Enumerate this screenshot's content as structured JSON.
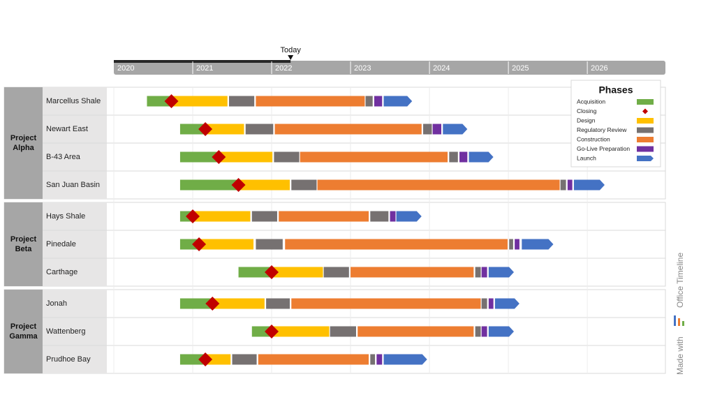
{
  "chart_data": {
    "type": "gantt",
    "xlim": [
      2020,
      2026.99
    ],
    "xticks": [
      2020,
      2021,
      2022,
      2023,
      2024,
      2025,
      2026
    ],
    "today": {
      "label": "Today",
      "value": 2022.24
    },
    "legend": {
      "title": "Phases",
      "items": [
        {
          "name": "Acquisition",
          "color": "#70ad47"
        },
        {
          "name": "Closing",
          "color": "#c00000"
        },
        {
          "name": "Design",
          "color": "#ffc000"
        },
        {
          "name": "Regulatory Review",
          "color": "#767171"
        },
        {
          "name": "Construction",
          "color": "#ed7d31"
        },
        {
          "name": "Go-Live Preparation",
          "color": "#7030a0"
        },
        {
          "name": "Launch",
          "color": "#4472c4"
        }
      ]
    },
    "groups": [
      {
        "name": "Project Alpha",
        "rows": [
          {
            "name": "Marcellus Shale",
            "closing": 2020.73,
            "bars": [
              {
                "phase": "Acquisition",
                "start": 2020.42,
                "end": 2020.73
              },
              {
                "phase": "Design",
                "start": 2020.73,
                "end": 2021.44
              },
              {
                "phase": "Regulatory Review",
                "start": 2021.46,
                "end": 2021.78
              },
              {
                "phase": "Construction",
                "start": 2021.8,
                "end": 2023.18
              },
              {
                "phase": "Regulatory Review",
                "start": 2023.19,
                "end": 2023.28
              },
              {
                "phase": "Go-Live Preparation",
                "start": 2023.3,
                "end": 2023.4
              },
              {
                "phase": "Launch",
                "start": 2023.42,
                "end": 2023.78
              }
            ]
          },
          {
            "name": "Newart East",
            "closing": 2021.16,
            "bars": [
              {
                "phase": "Acquisition",
                "start": 2020.84,
                "end": 2021.16
              },
              {
                "phase": "Design",
                "start": 2021.16,
                "end": 2021.65
              },
              {
                "phase": "Regulatory Review",
                "start": 2021.67,
                "end": 2022.02
              },
              {
                "phase": "Construction",
                "start": 2022.04,
                "end": 2023.9
              },
              {
                "phase": "Regulatory Review",
                "start": 2023.92,
                "end": 2024.03
              },
              {
                "phase": "Go-Live Preparation",
                "start": 2024.04,
                "end": 2024.15
              },
              {
                "phase": "Launch",
                "start": 2024.17,
                "end": 2024.48
              }
            ]
          },
          {
            "name": "B-43 Area",
            "closing": 2021.33,
            "bars": [
              {
                "phase": "Acquisition",
                "start": 2020.84,
                "end": 2021.33
              },
              {
                "phase": "Design",
                "start": 2021.33,
                "end": 2022.01
              },
              {
                "phase": "Regulatory Review",
                "start": 2022.03,
                "end": 2022.35
              },
              {
                "phase": "Construction",
                "start": 2022.36,
                "end": 2024.23
              },
              {
                "phase": "Regulatory Review",
                "start": 2024.25,
                "end": 2024.36
              },
              {
                "phase": "Go-Live Preparation",
                "start": 2024.38,
                "end": 2024.48
              },
              {
                "phase": "Launch",
                "start": 2024.5,
                "end": 2024.81
              }
            ]
          },
          {
            "name": "San Juan Basin",
            "closing": 2021.58,
            "bars": [
              {
                "phase": "Acquisition",
                "start": 2020.84,
                "end": 2021.58
              },
              {
                "phase": "Design",
                "start": 2021.58,
                "end": 2022.23
              },
              {
                "phase": "Regulatory Review",
                "start": 2022.25,
                "end": 2022.57
              },
              {
                "phase": "Construction",
                "start": 2022.58,
                "end": 2025.65
              },
              {
                "phase": "Regulatory Review",
                "start": 2025.66,
                "end": 2025.73
              },
              {
                "phase": "Go-Live Preparation",
                "start": 2025.75,
                "end": 2025.81
              },
              {
                "phase": "Launch",
                "start": 2025.83,
                "end": 2026.22
              }
            ]
          }
        ]
      },
      {
        "name": "Project Beta",
        "rows": [
          {
            "name": "Hays Shale",
            "closing": 2021.0,
            "bars": [
              {
                "phase": "Acquisition",
                "start": 2020.84,
                "end": 2021.0
              },
              {
                "phase": "Design",
                "start": 2021.0,
                "end": 2021.73
              },
              {
                "phase": "Regulatory Review",
                "start": 2021.75,
                "end": 2022.07
              },
              {
                "phase": "Construction",
                "start": 2022.09,
                "end": 2023.23
              },
              {
                "phase": "Regulatory Review",
                "start": 2023.25,
                "end": 2023.48
              },
              {
                "phase": "Go-Live Preparation",
                "start": 2023.5,
                "end": 2023.57
              },
              {
                "phase": "Launch",
                "start": 2023.58,
                "end": 2023.9
              }
            ]
          },
          {
            "name": "Pinedale",
            "closing": 2021.08,
            "bars": [
              {
                "phase": "Acquisition",
                "start": 2020.84,
                "end": 2021.08
              },
              {
                "phase": "Design",
                "start": 2021.08,
                "end": 2021.77
              },
              {
                "phase": "Regulatory Review",
                "start": 2021.8,
                "end": 2022.14
              },
              {
                "phase": "Construction",
                "start": 2022.17,
                "end": 2024.99
              },
              {
                "phase": "Regulatory Review",
                "start": 2025.01,
                "end": 2025.06
              },
              {
                "phase": "Go-Live Preparation",
                "start": 2025.08,
                "end": 2025.14
              },
              {
                "phase": "Launch",
                "start": 2025.17,
                "end": 2025.57
              }
            ]
          },
          {
            "name": "Carthage",
            "closing": 2022.0,
            "bars": [
              {
                "phase": "Acquisition",
                "start": 2021.58,
                "end": 2022.0
              },
              {
                "phase": "Design",
                "start": 2022.0,
                "end": 2022.65
              },
              {
                "phase": "Regulatory Review",
                "start": 2022.66,
                "end": 2022.98
              },
              {
                "phase": "Construction",
                "start": 2023.0,
                "end": 2024.56
              },
              {
                "phase": "Regulatory Review",
                "start": 2024.58,
                "end": 2024.65
              },
              {
                "phase": "Go-Live Preparation",
                "start": 2024.66,
                "end": 2024.73
              },
              {
                "phase": "Launch",
                "start": 2024.75,
                "end": 2025.07
              }
            ]
          }
        ]
      },
      {
        "name": "Project Gamma",
        "rows": [
          {
            "name": "Jonah",
            "closing": 2021.25,
            "bars": [
              {
                "phase": "Acquisition",
                "start": 2020.84,
                "end": 2021.25
              },
              {
                "phase": "Design",
                "start": 2021.25,
                "end": 2021.91
              },
              {
                "phase": "Regulatory Review",
                "start": 2021.93,
                "end": 2022.23
              },
              {
                "phase": "Construction",
                "start": 2022.25,
                "end": 2024.65
              },
              {
                "phase": "Regulatory Review",
                "start": 2024.66,
                "end": 2024.73
              },
              {
                "phase": "Go-Live Preparation",
                "start": 2024.75,
                "end": 2024.81
              },
              {
                "phase": "Launch",
                "start": 2024.83,
                "end": 2025.14
              }
            ]
          },
          {
            "name": "Wattenberg",
            "closing": 2022.0,
            "bars": [
              {
                "phase": "Acquisition",
                "start": 2021.75,
                "end": 2022.0
              },
              {
                "phase": "Design",
                "start": 2022.0,
                "end": 2022.73
              },
              {
                "phase": "Regulatory Review",
                "start": 2022.74,
                "end": 2023.07
              },
              {
                "phase": "Construction",
                "start": 2023.09,
                "end": 2024.56
              },
              {
                "phase": "Regulatory Review",
                "start": 2024.58,
                "end": 2024.65
              },
              {
                "phase": "Go-Live Preparation",
                "start": 2024.66,
                "end": 2024.73
              },
              {
                "phase": "Launch",
                "start": 2024.75,
                "end": 2025.07
              }
            ]
          },
          {
            "name": "Prudhoe Bay",
            "closing": 2021.16,
            "bars": [
              {
                "phase": "Acquisition",
                "start": 2020.84,
                "end": 2021.16
              },
              {
                "phase": "Design",
                "start": 2021.16,
                "end": 2021.48
              },
              {
                "phase": "Regulatory Review",
                "start": 2021.5,
                "end": 2021.81
              },
              {
                "phase": "Construction",
                "start": 2021.83,
                "end": 2023.23
              },
              {
                "phase": "Regulatory Review",
                "start": 2023.25,
                "end": 2023.31
              },
              {
                "phase": "Go-Live Preparation",
                "start": 2023.33,
                "end": 2023.4
              },
              {
                "phase": "Launch",
                "start": 2023.42,
                "end": 2023.97
              }
            ]
          }
        ]
      }
    ],
    "watermark": {
      "prefix": "Made with",
      "brand": "Office Timeline"
    }
  }
}
